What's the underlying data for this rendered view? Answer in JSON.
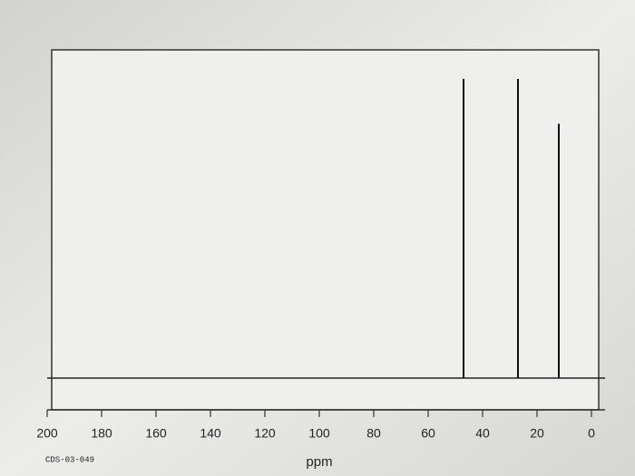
{
  "chart_data": {
    "type": "spectrum",
    "x": [
      47,
      27,
      12
    ],
    "values": [
      100,
      100,
      85
    ],
    "color": "#111111",
    "xlim": [
      200,
      0
    ],
    "ylim": [
      0,
      100
    ],
    "xticks": [
      200,
      180,
      160,
      140,
      120,
      100,
      80,
      60,
      40,
      20,
      0
    ],
    "xlabel": "ppm",
    "annotation": "CDS-03-049"
  }
}
